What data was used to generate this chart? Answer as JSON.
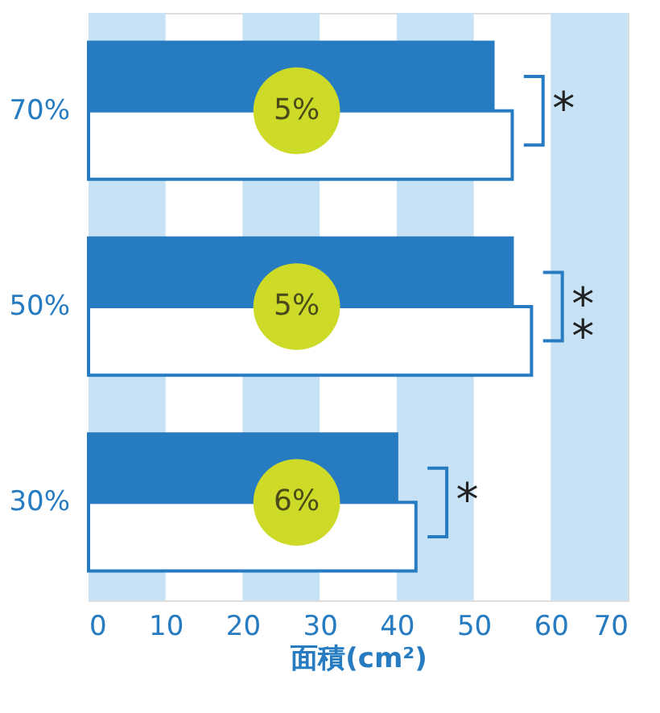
{
  "chart_data": {
    "type": "bar",
    "orientation": "horizontal",
    "xlabel": "面積(cm²)",
    "categories": [
      "70%",
      "50%",
      "30%"
    ],
    "series": [
      {
        "color": "#277cc1",
        "values": [
          52.5,
          55,
          40
        ]
      },
      {
        "color": "#ffffff",
        "values": [
          55,
          57.5,
          42.5
        ]
      }
    ],
    "xlim": [
      0,
      70
    ],
    "xticks": [
      0,
      10,
      20,
      30,
      40,
      50,
      60,
      70
    ],
    "grid": false,
    "bands": [
      {
        "axis": "x",
        "from": 0,
        "to": 10,
        "color": "#c6e2f4"
      },
      {
        "axis": "x",
        "from": 20,
        "to": 30,
        "color": "#c6e2f4"
      },
      {
        "axis": "x",
        "from": 40,
        "to": 50,
        "color": "#c6e2f4"
      },
      {
        "axis": "x",
        "from": 60,
        "to": 70,
        "color": "#c6e2f4"
      }
    ],
    "annotations": [
      "5%",
      "5%",
      "6%",
      "*",
      "**",
      "*"
    ]
  }
}
